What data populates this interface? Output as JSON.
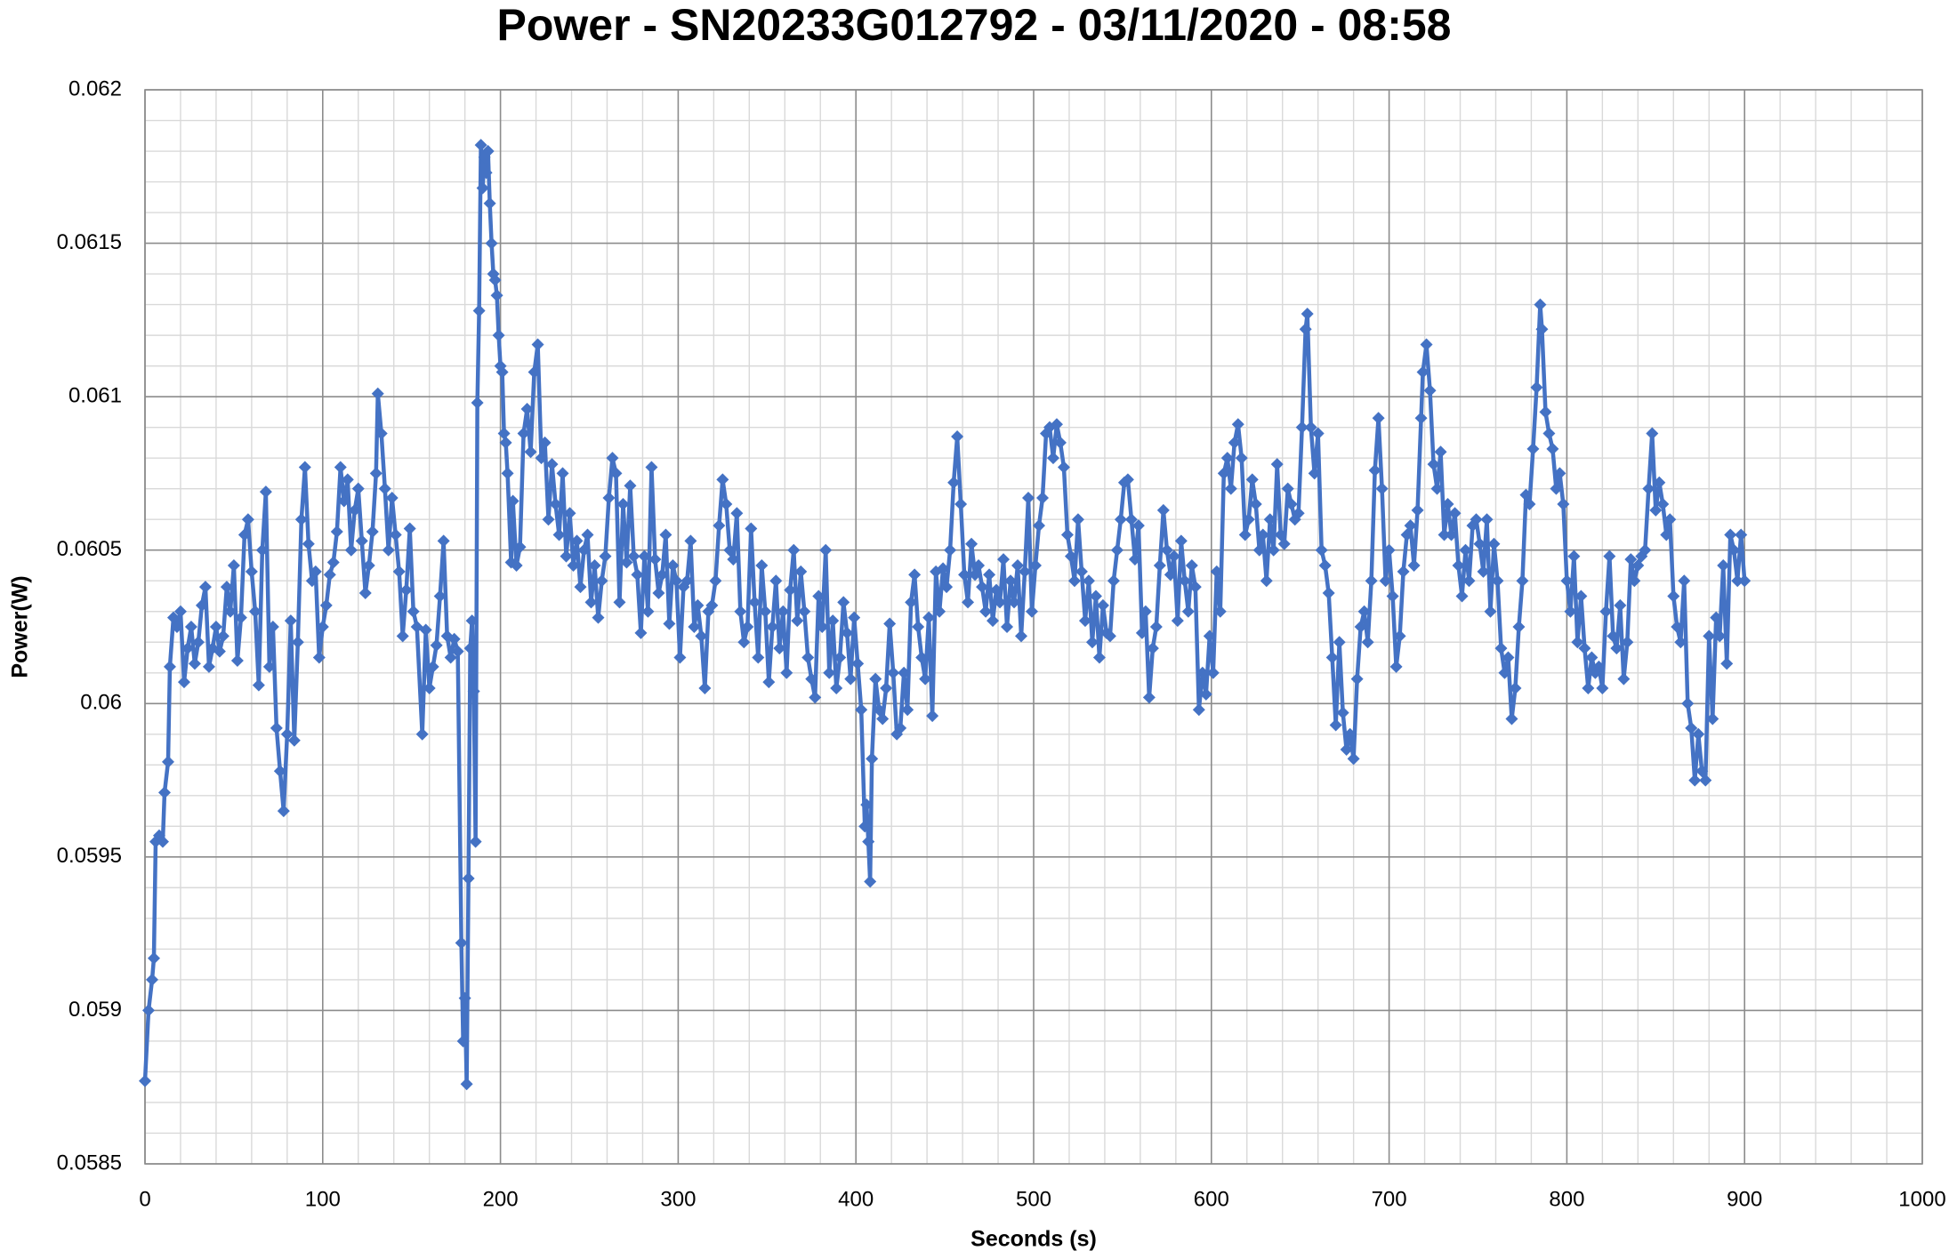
{
  "chart_data": {
    "type": "line",
    "title": "Power - SN20233G012792 - 03/11/2020 - 08:58",
    "x_label": "Seconds (s)",
    "y_label": "Power(W)",
    "xlim": [
      0,
      1000
    ],
    "xticks": [
      0,
      100,
      200,
      300,
      400,
      500,
      600,
      700,
      800,
      900,
      1000
    ],
    "ylim": [
      0.0585,
      0.062
    ],
    "yticks": [
      0.0585,
      0.059,
      0.0595,
      0.06,
      0.0605,
      0.061,
      0.0615,
      0.062
    ],
    "grid": true,
    "minor_grid": true,
    "marker": "diamond",
    "x": [
      0,
      2,
      4,
      5,
      6,
      8,
      10,
      11,
      13,
      14,
      16,
      18,
      20,
      22,
      24,
      26,
      28,
      30,
      32,
      34,
      36,
      38,
      40,
      42,
      44,
      46,
      48,
      50,
      52,
      54,
      56,
      58,
      60,
      62,
      64,
      66,
      68,
      70,
      72,
      74,
      76,
      78,
      80,
      82,
      84,
      86,
      88,
      90,
      92,
      94,
      96,
      98,
      100,
      102,
      104,
      106,
      108,
      110,
      112,
      114,
      116,
      118,
      120,
      122,
      124,
      126,
      128,
      130,
      131,
      133,
      135,
      137,
      139,
      141,
      143,
      145,
      147,
      149,
      151,
      153,
      156,
      158,
      160,
      162,
      164,
      166,
      168,
      170,
      172,
      174,
      176,
      178,
      179,
      180,
      181,
      182,
      183,
      184,
      185,
      186,
      187,
      188,
      189,
      190,
      191,
      192,
      193,
      194,
      195,
      196,
      197,
      198,
      199,
      200,
      201,
      202,
      203,
      204,
      206,
      207,
      209,
      211,
      213,
      215,
      217,
      219,
      221,
      223,
      225,
      227,
      229,
      231,
      233,
      235,
      237,
      239,
      241,
      243,
      245,
      247,
      249,
      251,
      253,
      255,
      257,
      259,
      261,
      263,
      265,
      267,
      269,
      271,
      273,
      275,
      277,
      279,
      281,
      283,
      285,
      287,
      289,
      291,
      293,
      295,
      297,
      299,
      301,
      303,
      305,
      307,
      309,
      311,
      313,
      315,
      317,
      319,
      321,
      323,
      325,
      327,
      329,
      331,
      333,
      335,
      337,
      339,
      341,
      343,
      345,
      347,
      349,
      351,
      353,
      355,
      357,
      359,
      361,
      363,
      365,
      367,
      369,
      371,
      373,
      375,
      377,
      379,
      381,
      383,
      385,
      387,
      389,
      391,
      393,
      395,
      397,
      399,
      401,
      403,
      405,
      406,
      407,
      408,
      409,
      411,
      413,
      415,
      417,
      419,
      421,
      423,
      425,
      427,
      429,
      431,
      433,
      435,
      437,
      439,
      441,
      443,
      445,
      447,
      449,
      451,
      453,
      455,
      457,
      459,
      461,
      463,
      465,
      467,
      469,
      471,
      473,
      475,
      477,
      479,
      481,
      483,
      485,
      487,
      489,
      491,
      493,
      495,
      497,
      499,
      501,
      503,
      505,
      507,
      509,
      511,
      513,
      515,
      517,
      519,
      521,
      523,
      525,
      527,
      529,
      531,
      533,
      535,
      537,
      539,
      541,
      543,
      545,
      547,
      549,
      551,
      553,
      555,
      557,
      559,
      561,
      563,
      565,
      567,
      569,
      571,
      573,
      575,
      577,
      579,
      581,
      583,
      585,
      587,
      589,
      591,
      593,
      595,
      597,
      599,
      601,
      603,
      605,
      607,
      609,
      611,
      613,
      615,
      617,
      619,
      621,
      623,
      625,
      627,
      629,
      631,
      633,
      635,
      637,
      639,
      641,
      643,
      645,
      647,
      649,
      651,
      653,
      654,
      656,
      658,
      660,
      662,
      664,
      666,
      668,
      670,
      672,
      674,
      676,
      678,
      680,
      682,
      684,
      686,
      688,
      690,
      692,
      694,
      696,
      698,
      700,
      702,
      704,
      706,
      708,
      710,
      712,
      714,
      716,
      718,
      719,
      721,
      723,
      725,
      727,
      729,
      731,
      733,
      735,
      737,
      739,
      741,
      743,
      745,
      747,
      749,
      751,
      753,
      755,
      757,
      759,
      761,
      763,
      765,
      767,
      769,
      771,
      773,
      775,
      777,
      779,
      781,
      783,
      785,
      786,
      788,
      790,
      792,
      794,
      796,
      798,
      800,
      802,
      804,
      806,
      808,
      810,
      812,
      814,
      816,
      818,
      820,
      822,
      824,
      826,
      828,
      830,
      832,
      834,
      836,
      838,
      840,
      842,
      844,
      846,
      848,
      850,
      852,
      854,
      856,
      858,
      860,
      862,
      864,
      866,
      868,
      870,
      872,
      874,
      876,
      878,
      880,
      882,
      884,
      886,
      888,
      890,
      892,
      894,
      896,
      898,
      900
    ],
    "series": [
      {
        "color": "#4472c4",
        "values": [
          0.05877,
          0.059,
          0.0591,
          0.05917,
          0.05955,
          0.05957,
          0.05955,
          0.05971,
          0.05981,
          0.06012,
          0.06028,
          0.06025,
          0.0603,
          0.06007,
          0.06018,
          0.06025,
          0.06013,
          0.0602,
          0.06032,
          0.06038,
          0.06012,
          0.06018,
          0.06025,
          0.06017,
          0.06022,
          0.06038,
          0.0603,
          0.06045,
          0.06014,
          0.06028,
          0.06055,
          0.0606,
          0.06043,
          0.0603,
          0.06006,
          0.0605,
          0.06069,
          0.06012,
          0.06025,
          0.05992,
          0.05978,
          0.05965,
          0.0599,
          0.06027,
          0.05988,
          0.0602,
          0.0606,
          0.06077,
          0.06052,
          0.0604,
          0.06043,
          0.06015,
          0.06025,
          0.06032,
          0.06042,
          0.06046,
          0.06056,
          0.06077,
          0.06066,
          0.06073,
          0.0605,
          0.06063,
          0.0607,
          0.06053,
          0.06036,
          0.06045,
          0.06056,
          0.06075,
          0.06101,
          0.06088,
          0.0607,
          0.0605,
          0.06067,
          0.06055,
          0.06043,
          0.06022,
          0.06037,
          0.06057,
          0.0603,
          0.06025,
          0.0599,
          0.06024,
          0.06005,
          0.06012,
          0.06019,
          0.06035,
          0.06053,
          0.06022,
          0.06015,
          0.06021,
          0.06017,
          0.05922,
          0.0589,
          0.05904,
          0.05876,
          0.05943,
          0.06018,
          0.06027,
          0.06004,
          0.05955,
          0.06098,
          0.06128,
          0.06182,
          0.06168,
          0.06178,
          0.06173,
          0.0618,
          0.06163,
          0.0615,
          0.0614,
          0.06138,
          0.06133,
          0.0612,
          0.0611,
          0.06108,
          0.06088,
          0.06085,
          0.06075,
          0.06046,
          0.06066,
          0.06045,
          0.06051,
          0.06088,
          0.06096,
          0.06082,
          0.06108,
          0.06117,
          0.0608,
          0.06085,
          0.0606,
          0.06078,
          0.06065,
          0.06055,
          0.06075,
          0.06048,
          0.06062,
          0.06045,
          0.06053,
          0.06038,
          0.0605,
          0.06055,
          0.06033,
          0.06045,
          0.06028,
          0.0604,
          0.06048,
          0.06067,
          0.0608,
          0.06075,
          0.06033,
          0.06065,
          0.06046,
          0.06071,
          0.06048,
          0.06042,
          0.06023,
          0.06048,
          0.0603,
          0.06077,
          0.06047,
          0.06036,
          0.06042,
          0.06055,
          0.06026,
          0.06045,
          0.0604,
          0.06015,
          0.06038,
          0.0604,
          0.06053,
          0.06025,
          0.06032,
          0.06022,
          0.06005,
          0.0603,
          0.06032,
          0.0604,
          0.06058,
          0.06073,
          0.06065,
          0.0605,
          0.06047,
          0.06062,
          0.0603,
          0.0602,
          0.06025,
          0.06057,
          0.06033,
          0.06015,
          0.06045,
          0.0603,
          0.06007,
          0.06025,
          0.0604,
          0.06018,
          0.0603,
          0.0601,
          0.06037,
          0.0605,
          0.06027,
          0.06043,
          0.0603,
          0.06015,
          0.06008,
          0.06002,
          0.06035,
          0.06025,
          0.0605,
          0.0601,
          0.06027,
          0.06005,
          0.06015,
          0.06033,
          0.06023,
          0.06008,
          0.06028,
          0.06013,
          0.05998,
          0.0596,
          0.05967,
          0.05955,
          0.05942,
          0.05982,
          0.06008,
          0.05998,
          0.05995,
          0.06005,
          0.06026,
          0.0601,
          0.0599,
          0.05992,
          0.0601,
          0.05998,
          0.06033,
          0.06042,
          0.06025,
          0.06015,
          0.06008,
          0.06028,
          0.05996,
          0.06043,
          0.0603,
          0.06044,
          0.06038,
          0.0605,
          0.06072,
          0.06087,
          0.06065,
          0.06042,
          0.06033,
          0.06052,
          0.06042,
          0.06045,
          0.06038,
          0.0603,
          0.06042,
          0.06027,
          0.06037,
          0.06033,
          0.06047,
          0.06025,
          0.0604,
          0.06033,
          0.06045,
          0.06022,
          0.06043,
          0.06067,
          0.0603,
          0.06045,
          0.06058,
          0.06067,
          0.06088,
          0.0609,
          0.0608,
          0.06091,
          0.06085,
          0.06077,
          0.06055,
          0.06048,
          0.0604,
          0.0606,
          0.06043,
          0.06027,
          0.0604,
          0.0602,
          0.06035,
          0.06015,
          0.06032,
          0.06023,
          0.06022,
          0.0604,
          0.0605,
          0.0606,
          0.06072,
          0.06073,
          0.0606,
          0.06047,
          0.06058,
          0.06023,
          0.0603,
          0.06002,
          0.06018,
          0.06025,
          0.06045,
          0.06063,
          0.0605,
          0.06042,
          0.06048,
          0.06027,
          0.06053,
          0.0604,
          0.0603,
          0.06045,
          0.06038,
          0.05998,
          0.0601,
          0.06003,
          0.06022,
          0.0601,
          0.06043,
          0.0603,
          0.06075,
          0.0608,
          0.0607,
          0.06085,
          0.06091,
          0.0608,
          0.06055,
          0.0606,
          0.06073,
          0.06065,
          0.0605,
          0.06055,
          0.0604,
          0.0606,
          0.0605,
          0.06078,
          0.06055,
          0.06052,
          0.0607,
          0.06065,
          0.0606,
          0.06062,
          0.0609,
          0.06122,
          0.06127,
          0.0609,
          0.06075,
          0.06088,
          0.0605,
          0.06045,
          0.06036,
          0.06015,
          0.05993,
          0.0602,
          0.05997,
          0.05985,
          0.0599,
          0.05982,
          0.06008,
          0.06025,
          0.0603,
          0.0602,
          0.0604,
          0.06076,
          0.06093,
          0.0607,
          0.0604,
          0.0605,
          0.06035,
          0.06012,
          0.06022,
          0.06043,
          0.06055,
          0.06058,
          0.06045,
          0.06063,
          0.06093,
          0.06108,
          0.06117,
          0.06102,
          0.06078,
          0.0607,
          0.06082,
          0.06055,
          0.06065,
          0.06055,
          0.06062,
          0.06045,
          0.06035,
          0.0605,
          0.0604,
          0.06058,
          0.0606,
          0.06052,
          0.06043,
          0.0606,
          0.0603,
          0.06052,
          0.0604,
          0.06018,
          0.0601,
          0.06015,
          0.05995,
          0.06005,
          0.06025,
          0.0604,
          0.06068,
          0.06065,
          0.06083,
          0.06103,
          0.0613,
          0.06122,
          0.06095,
          0.06088,
          0.06083,
          0.0607,
          0.06075,
          0.06065,
          0.0604,
          0.0603,
          0.06048,
          0.0602,
          0.06035,
          0.06018,
          0.06005,
          0.06015,
          0.0601,
          0.06012,
          0.06005,
          0.0603,
          0.06048,
          0.06022,
          0.06018,
          0.06032,
          0.06008,
          0.0602,
          0.06047,
          0.0604,
          0.06045,
          0.06048,
          0.0605,
          0.0607,
          0.06088,
          0.06063,
          0.06072,
          0.06065,
          0.06055,
          0.0606,
          0.06035,
          0.06025,
          0.0602,
          0.0604,
          0.06,
          0.05992,
          0.05975,
          0.0599,
          0.05978,
          0.05975,
          0.06022,
          0.05995,
          0.06028,
          0.06022,
          0.06045,
          0.06013,
          0.06055,
          0.0605,
          0.0604,
          0.06055,
          0.0604
        ]
      }
    ]
  }
}
